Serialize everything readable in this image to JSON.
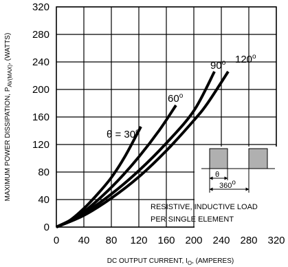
{
  "chart_data": {
    "type": "line",
    "xlabel": {
      "prefix": "DC OUTPUT CURRENT, I",
      "sub": "O",
      "suffix": ", (AMPERES)"
    },
    "ylabel": {
      "prefix": "MAXIMUM POWER DISSIPATION, P",
      "sub": "AV(MAX)",
      "suffix": ", (WATTS)"
    },
    "xlim": [
      0,
      320
    ],
    "ylim": [
      0,
      320
    ],
    "xticks": [
      0,
      40,
      80,
      120,
      160,
      200,
      240,
      280,
      320
    ],
    "yticks": [
      0,
      40,
      80,
      120,
      160,
      200,
      240,
      280,
      320
    ],
    "grid": true,
    "series": [
      {
        "name": "θ = 30",
        "deg": "o",
        "points": [
          [
            0,
            0
          ],
          [
            20,
            10
          ],
          [
            40,
            27
          ],
          [
            60,
            48
          ],
          [
            80,
            72
          ],
          [
            100,
            103
          ],
          [
            123,
            146
          ]
        ]
      },
      {
        "name": "60",
        "deg": "o",
        "points": [
          [
            0,
            0
          ],
          [
            30,
            15
          ],
          [
            60,
            39
          ],
          [
            90,
            68
          ],
          [
            120,
            102
          ],
          [
            150,
            141
          ],
          [
            174,
            177
          ]
        ]
      },
      {
        "name": "90",
        "deg": "o",
        "points": [
          [
            0,
            0
          ],
          [
            40,
            20
          ],
          [
            80,
            48
          ],
          [
            120,
            82
          ],
          [
            160,
            122
          ],
          [
            200,
            169
          ],
          [
            230,
            226
          ]
        ]
      },
      {
        "name": "120",
        "deg": "o",
        "points": [
          [
            0,
            0
          ],
          [
            40,
            17
          ],
          [
            80,
            42
          ],
          [
            120,
            73
          ],
          [
            160,
            111
          ],
          [
            200,
            155
          ],
          [
            220,
            180
          ],
          [
            250,
            226
          ]
        ]
      }
    ],
    "annotations": {
      "theta": "θ",
      "period": "360",
      "period_deg": "o",
      "note_line1": "RESISTIVE, INDUCTIVE LOAD",
      "note_line2": "PER SINGLE ELEMENT"
    }
  }
}
